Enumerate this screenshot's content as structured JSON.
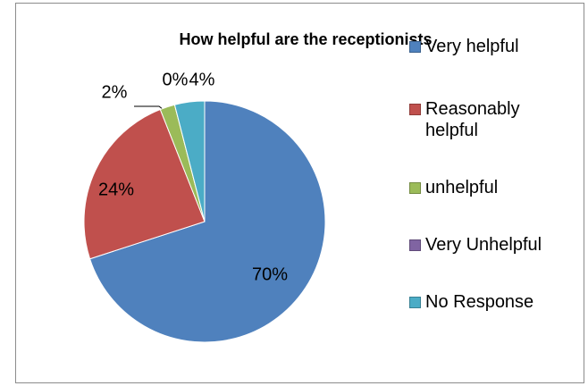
{
  "chart_data": {
    "type": "pie",
    "title": "How helpful are the receptionists",
    "categories": [
      "Very helpful",
      "Reasonably helpful",
      "unhelpful",
      "Very Unhelpful",
      "No Response"
    ],
    "values": [
      70,
      24,
      2,
      0,
      4
    ],
    "value_labels": [
      "70%",
      "24%",
      "2%",
      "0%",
      "4%"
    ],
    "colors": [
      "#4f81bd",
      "#c0504d",
      "#9bbb59",
      "#8064a2",
      "#4bacc6"
    ],
    "legend": "right"
  }
}
